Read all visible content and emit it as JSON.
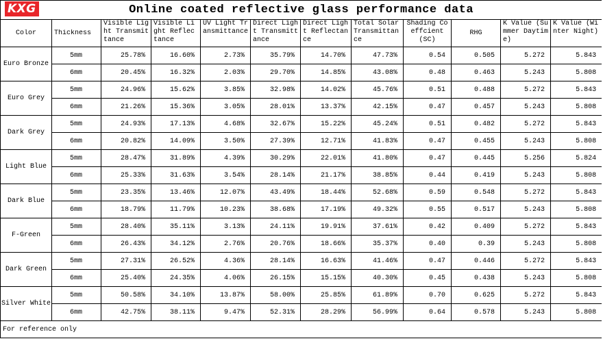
{
  "header": {
    "logo": "KXG",
    "title": "Online coated reflective glass performance data"
  },
  "table": {
    "columns": [
      "Color",
      "Thickness",
      "Visible Light Transmittance",
      "Visible Light Reflectance",
      "UV Light Transmittance",
      "Direct Light Transmittance",
      "Direct Light Reflectance",
      "Total Solar Transmittance",
      "Shading Coeffcient (SC)",
      "RHG",
      "K Value (Summer Daytime)",
      "K Value (Winter Night)"
    ],
    "groups": [
      {
        "color": "Euro Bronze",
        "rows": [
          [
            "5mm",
            "25.78%",
            "16.60%",
            "2.73%",
            "35.79%",
            "14.70%",
            "47.73%",
            "0.54",
            "0.505",
            "5.272",
            "5.843"
          ],
          [
            "6mm",
            "20.45%",
            "16.32%",
            "2.03%",
            "29.70%",
            "14.85%",
            "43.08%",
            "0.48",
            "0.463",
            "5.243",
            "5.808"
          ]
        ]
      },
      {
        "color": "Euro Grey",
        "rows": [
          [
            "5mm",
            "24.96%",
            "15.62%",
            "3.85%",
            "32.98%",
            "14.02%",
            "45.76%",
            "0.51",
            "0.488",
            "5.272",
            "5.843"
          ],
          [
            "6mm",
            "21.26%",
            "15.36%",
            "3.05%",
            "28.01%",
            "13.37%",
            "42.15%",
            "0.47",
            "0.457",
            "5.243",
            "5.808"
          ]
        ]
      },
      {
        "color": "Dark Grey",
        "rows": [
          [
            "5mm",
            "24.93%",
            "17.13%",
            "4.68%",
            "32.67%",
            "15.22%",
            "45.24%",
            "0.51",
            "0.482",
            "5.272",
            "5.843"
          ],
          [
            "6mm",
            "20.82%",
            "14.09%",
            "3.50%",
            "27.39%",
            "12.71%",
            "41.83%",
            "0.47",
            "0.455",
            "5.243",
            "5.808"
          ]
        ]
      },
      {
        "color": "Light Blue",
        "rows": [
          [
            "5mm",
            "28.47%",
            "31.89%",
            "4.39%",
            "30.29%",
            "22.01%",
            "41.80%",
            "0.47",
            "0.445",
            "5.256",
            "5.824"
          ],
          [
            "6mm",
            "25.33%",
            "31.63%",
            "3.54%",
            "28.14%",
            "21.17%",
            "38.85%",
            "0.44",
            "0.419",
            "5.243",
            "5.808"
          ]
        ]
      },
      {
        "color": "Dark Blue",
        "rows": [
          [
            "5mm",
            "23.35%",
            "13.46%",
            "12.07%",
            "43.49%",
            "18.44%",
            "52.68%",
            "0.59",
            "0.548",
            "5.272",
            "5.843"
          ],
          [
            "6mm",
            "18.79%",
            "11.79%",
            "10.23%",
            "38.68%",
            "17.19%",
            "49.32%",
            "0.55",
            "0.517",
            "5.243",
            "5.808"
          ]
        ]
      },
      {
        "color": "F-Green",
        "rows": [
          [
            "5mm",
            "28.40%",
            "35.11%",
            "3.13%",
            "24.11%",
            "19.91%",
            "37.61%",
            "0.42",
            "0.409",
            "5.272",
            "5.843"
          ],
          [
            "6mm",
            "26.43%",
            "34.12%",
            "2.76%",
            "20.76%",
            "18.66%",
            "35.37%",
            "0.40",
            "0.39",
            "5.243",
            "5.808"
          ]
        ]
      },
      {
        "color": "Dark Green",
        "rows": [
          [
            "5mm",
            "27.31%",
            "26.52%",
            "4.36%",
            "28.14%",
            "16.63%",
            "41.46%",
            "0.47",
            "0.446",
            "5.272",
            "5.843"
          ],
          [
            "6mm",
            "25.40%",
            "24.35%",
            "4.06%",
            "26.15%",
            "15.15%",
            "40.30%",
            "0.45",
            "0.438",
            "5.243",
            "5.808"
          ]
        ]
      },
      {
        "color": "Silver White",
        "rows": [
          [
            "5mm",
            "50.58%",
            "34.10%",
            "13.87%",
            "58.00%",
            "25.85%",
            "61.89%",
            "0.70",
            "0.625",
            "5.272",
            "5.843"
          ],
          [
            "6mm",
            "42.75%",
            "38.11%",
            "9.47%",
            "52.31%",
            "28.29%",
            "56.99%",
            "0.64",
            "0.578",
            "5.243",
            "5.808"
          ]
        ]
      }
    ]
  },
  "footer": "For reference only"
}
